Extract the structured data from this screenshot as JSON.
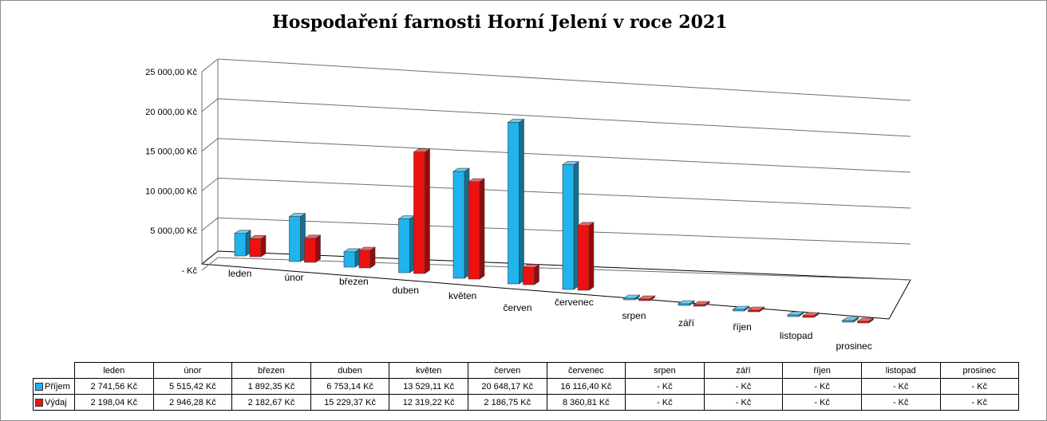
{
  "chart_data": {
    "type": "bar",
    "variant": "3d-clustered-column",
    "title": "Hospodaření farnosti Horní Jelení v roce 2021",
    "categories": [
      "leden",
      "únor",
      "březen",
      "duben",
      "květen",
      "červen",
      "červenec",
      "srpen",
      "září",
      "říjen",
      "listopad",
      "prosinec"
    ],
    "series": [
      {
        "name": "Příjem",
        "color": "#1fb4ec",
        "values": [
          2741.56,
          5515.42,
          1892.35,
          6753.14,
          13529.11,
          20648.17,
          16116.4,
          0,
          0,
          0,
          0,
          0
        ],
        "labels": [
          "2 741,56 Kč",
          "5 515,42 Kč",
          "1 892,35 Kč",
          "6 753,14 Kč",
          "13 529,11 Kč",
          "20 648,17 Kč",
          "16 116,40 Kč",
          "-   Kč",
          "-   Kč",
          "-   Kč",
          "-   Kč",
          "-   Kč"
        ]
      },
      {
        "name": "Výdaj",
        "color": "#ee1111",
        "values": [
          2198.04,
          2946.28,
          2182.67,
          15229.37,
          12319.22,
          2186.75,
          8360.81,
          0,
          0,
          0,
          0,
          0
        ],
        "labels": [
          "2 198,04 Kč",
          "2 946,28 Kč",
          "2 182,67 Kč",
          "15 229,37 Kč",
          "12 319,22 Kč",
          "2 186,75 Kč",
          "8 360,81 Kč",
          "-   Kč",
          "-   Kč",
          "-   Kč",
          "-   Kč",
          "-   Kč"
        ]
      }
    ],
    "y_ticks": [
      0,
      5000,
      10000,
      15000,
      20000,
      25000
    ],
    "y_tick_labels": [
      "-   Kč",
      "5 000,00 Kč",
      "10 000,00 Kč",
      "15 000,00 Kč",
      "20 000,00 Kč",
      "25 000,00 Kč"
    ],
    "ylim": [
      0,
      25000
    ],
    "grid": true,
    "legend": "data-table"
  }
}
